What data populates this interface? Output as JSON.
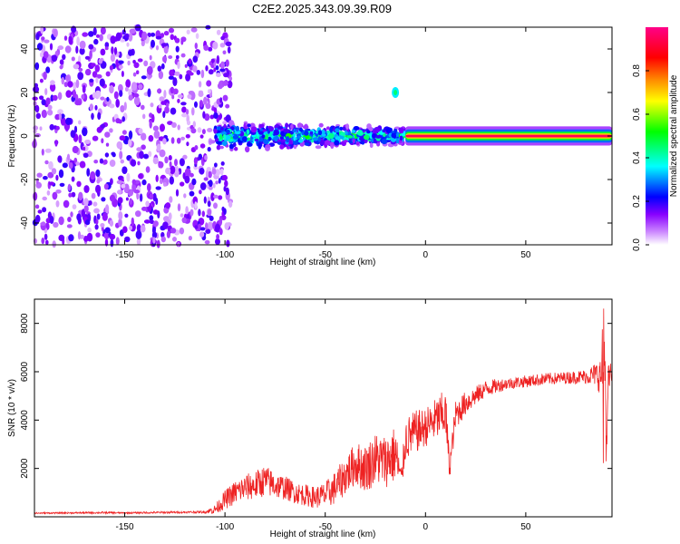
{
  "figure": {
    "title": "C2E2.2025.343.09.39.R09"
  },
  "chart_data": [
    {
      "type": "heatmap",
      "title": "C2E2.2025.343.09.39.R09",
      "xlabel": "Height of straight line (km)",
      "ylabel": "Frequency (Hz)",
      "xlim": [
        -195,
        93
      ],
      "ylim": [
        -50,
        50
      ],
      "xticks": [
        -150,
        -100,
        -50,
        0,
        50
      ],
      "yticks": [
        -40,
        -20,
        0,
        20,
        40
      ],
      "colorbar": {
        "label": "Normalized spectral amplitude",
        "range": [
          0.0,
          1.0
        ],
        "ticks": [
          "0.0",
          "0.2",
          "0.4",
          "0.6",
          "0.8"
        ],
        "colors": [
          "#ffffff",
          "#cc88ff",
          "#8800ff",
          "#0000ff",
          "#00ffff",
          "#00ff00",
          "#ffff00",
          "#ff8800",
          "#ff0000",
          "#ff0088"
        ]
      },
      "features": [
        {
          "region": "noise",
          "x_range": [
            -195,
            -105
          ],
          "y_range": [
            -50,
            50
          ],
          "amplitude": 0.15
        },
        {
          "region": "signal",
          "x_range": [
            -105,
            -10
          ],
          "center_freq": 0,
          "half_width_hz": 6,
          "amplitude": 0.4
        },
        {
          "region": "signal",
          "x_range": [
            -10,
            93
          ],
          "center_freq": 0,
          "half_width_hz": 2,
          "amplitude": 0.95
        },
        {
          "region": "spot",
          "x": -15,
          "freq": 20,
          "amplitude": 0.35
        }
      ]
    },
    {
      "type": "line",
      "xlabel": "Height of straight line (km)",
      "ylabel": "SNR (10 * v/v)",
      "xlim": [
        -195,
        93
      ],
      "ylim": [
        0,
        9000
      ],
      "xticks": [
        -150,
        -100,
        -50,
        0,
        50
      ],
      "yticks": [
        2000,
        4000,
        6000,
        8000
      ],
      "series": [
        {
          "name": "SNR",
          "color": "#ee2222",
          "x": [
            -195,
            -180,
            -160,
            -150,
            -140,
            -130,
            -120,
            -110,
            -105,
            -100,
            -95,
            -90,
            -85,
            -80,
            -75,
            -70,
            -65,
            -60,
            -55,
            -50,
            -45,
            -40,
            -35,
            -30,
            -25,
            -20,
            -15,
            -12,
            -10,
            -5,
            0,
            5,
            10,
            12,
            15,
            20,
            25,
            30,
            35,
            40,
            50,
            60,
            70,
            80,
            85,
            88,
            90,
            92,
            93
          ],
          "y": [
            150,
            160,
            170,
            160,
            170,
            180,
            190,
            200,
            300,
            700,
            1000,
            1200,
            1300,
            1500,
            1300,
            1200,
            1000,
            900,
            800,
            900,
            1200,
            1700,
            2200,
            2000,
            2400,
            2300,
            2600,
            1500,
            3200,
            3500,
            3700,
            4000,
            4300,
            2000,
            4200,
            4700,
            5000,
            5300,
            5400,
            5500,
            5600,
            5700,
            5750,
            5800,
            5900,
            5800,
            4500,
            6000,
            5800
          ],
          "noise": [
            30,
            30,
            40,
            30,
            40,
            40,
            40,
            50,
            200,
            400,
            500,
            550,
            600,
            650,
            550,
            500,
            450,
            450,
            450,
            550,
            700,
            800,
            900,
            1000,
            1100,
            1100,
            1200,
            500,
            900,
            900,
            800,
            900,
            1000,
            500,
            600,
            500,
            400,
            350,
            300,
            250,
            250,
            250,
            250,
            300,
            500,
            900,
            1600,
            500,
            300
          ]
        }
      ]
    }
  ]
}
